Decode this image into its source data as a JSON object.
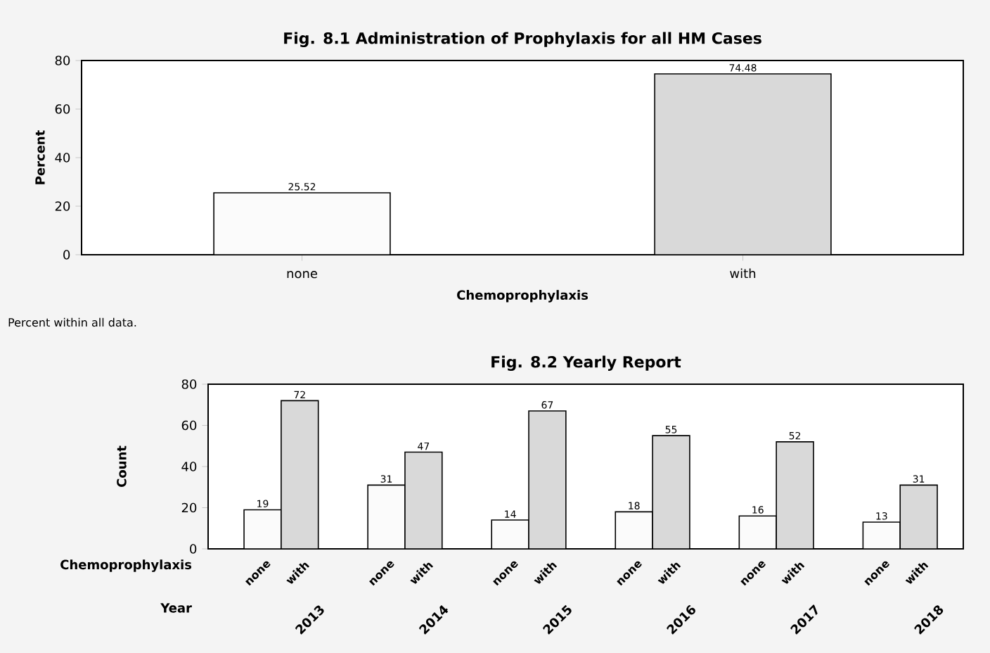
{
  "chart_data": [
    {
      "type": "bar",
      "title": "Fig. 8.1 Administration of Prophylaxis for all HM Cases",
      "xlabel": "Chemoprophylaxis",
      "ylabel": "Percent",
      "categories": [
        "none",
        "with"
      ],
      "values": [
        25.52,
        74.48
      ],
      "colors": [
        "#fbfbfb",
        "#d9d9d9"
      ],
      "ylim": [
        0,
        80
      ],
      "yticks": [
        0,
        20,
        40,
        60,
        80
      ],
      "data_labels": true,
      "annotations": [
        "Percent within all data."
      ]
    },
    {
      "type": "bar",
      "title": "Fig. 8.2 Yearly Report",
      "xlabel": "Year",
      "ylabel": "Count",
      "categories": [
        "2013",
        "2014",
        "2015",
        "2016",
        "2017",
        "2018"
      ],
      "series": [
        {
          "name": "none",
          "color": "#fbfbfb",
          "values": [
            19,
            31,
            14,
            18,
            16,
            13
          ]
        },
        {
          "name": "with",
          "color": "#d9d9d9",
          "values": [
            72,
            47,
            67,
            55,
            52,
            31
          ]
        }
      ],
      "ylim": [
        0,
        80
      ],
      "yticks": [
        0,
        20,
        40,
        60,
        80
      ],
      "data_labels": true,
      "annotations": [
        "Chemoprophylaxis"
      ]
    }
  ]
}
